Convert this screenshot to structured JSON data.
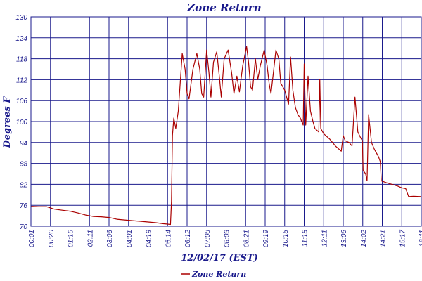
{
  "chart_data": {
    "type": "line",
    "title": "Zone Return",
    "ylabel": "Degrees F",
    "xlabel": "12/02/17 (EST)",
    "ylim": [
      70,
      130
    ],
    "yticks": [
      70,
      76,
      82,
      88,
      94,
      100,
      106,
      112,
      118,
      124,
      130
    ],
    "xticks": [
      "00:01",
      "00:20",
      "01:16",
      "02:11",
      "03:06",
      "04:01",
      "04:19",
      "05:14",
      "06:12",
      "07:08",
      "08:03",
      "08:21",
      "09:19",
      "10:15",
      "11:15",
      "12:11",
      "13:06",
      "14:02",
      "14:21",
      "15:17",
      "16:11"
    ],
    "grid": true,
    "legend": "bottom-center",
    "colors": {
      "series": "#aa0000",
      "grid": "#1a1a8c",
      "text": "#1a1a8c"
    },
    "series": [
      {
        "name": "Zone Return",
        "points": [
          [
            0,
            75.7
          ],
          [
            0.4,
            75.6
          ],
          [
            0.8,
            75.6
          ],
          [
            1.2,
            74.9
          ],
          [
            1.6,
            74.6
          ],
          [
            2.0,
            74.3
          ],
          [
            2.4,
            73.8
          ],
          [
            2.8,
            73.2
          ],
          [
            3.2,
            72.8
          ],
          [
            3.6,
            72.7
          ],
          [
            4.0,
            72.5
          ],
          [
            4.4,
            72.0
          ],
          [
            4.8,
            71.8
          ],
          [
            5.2,
            71.6
          ],
          [
            5.6,
            71.4
          ],
          [
            6.0,
            71.2
          ],
          [
            6.4,
            71.0
          ],
          [
            6.8,
            70.7
          ],
          [
            7.0,
            70.6
          ],
          [
            7.15,
            70.5
          ],
          [
            7.2,
            77.0
          ],
          [
            7.25,
            96.0
          ],
          [
            7.32,
            101.0
          ],
          [
            7.42,
            98.0
          ],
          [
            7.55,
            103.0
          ],
          [
            7.75,
            119.5
          ],
          [
            7.9,
            115.0
          ],
          [
            8.0,
            108.0
          ],
          [
            8.1,
            106.5
          ],
          [
            8.3,
            115.0
          ],
          [
            8.5,
            119.5
          ],
          [
            8.65,
            115.0
          ],
          [
            8.75,
            108.0
          ],
          [
            8.85,
            107.0
          ],
          [
            9.0,
            120.5
          ],
          [
            9.12,
            114.0
          ],
          [
            9.22,
            107.0
          ],
          [
            9.35,
            117.0
          ],
          [
            9.52,
            120.0
          ],
          [
            9.65,
            113.0
          ],
          [
            9.75,
            107.0
          ],
          [
            9.9,
            118.0
          ],
          [
            10.1,
            120.5
          ],
          [
            10.28,
            114.0
          ],
          [
            10.4,
            108.0
          ],
          [
            10.55,
            113.0
          ],
          [
            10.68,
            108.5
          ],
          [
            10.85,
            116.0
          ],
          [
            11.05,
            121.5
          ],
          [
            11.15,
            117.0
          ],
          [
            11.25,
            110.0
          ],
          [
            11.35,
            109.0
          ],
          [
            11.5,
            118.0
          ],
          [
            11.62,
            112.0
          ],
          [
            11.75,
            116.0
          ],
          [
            11.95,
            120.5
          ],
          [
            12.1,
            116.0
          ],
          [
            12.2,
            111.0
          ],
          [
            12.3,
            108.0
          ],
          [
            12.42,
            114.0
          ],
          [
            12.55,
            120.5
          ],
          [
            12.7,
            118.0
          ],
          [
            12.8,
            111.0
          ],
          [
            13.0,
            109.0
          ],
          [
            13.1,
            107.0
          ],
          [
            13.2,
            105.0
          ],
          [
            13.3,
            118.5
          ],
          [
            13.42,
            109.0
          ],
          [
            13.55,
            104.0
          ],
          [
            13.68,
            102.0
          ],
          [
            13.8,
            101.0
          ],
          [
            13.95,
            99.0
          ],
          [
            14.0,
            116.5
          ],
          [
            14.08,
            99.0
          ],
          [
            14.2,
            113.0
          ],
          [
            14.32,
            103.0
          ],
          [
            14.45,
            100.0
          ],
          [
            14.55,
            98.0
          ],
          [
            14.75,
            97.0
          ],
          [
            14.8,
            112.0
          ],
          [
            14.85,
            98.0
          ],
          [
            15.0,
            96.5
          ],
          [
            15.3,
            95.0
          ],
          [
            15.6,
            93.0
          ],
          [
            15.9,
            91.5
          ],
          [
            16.0,
            96.0
          ],
          [
            16.1,
            94.5
          ],
          [
            16.3,
            94.0
          ],
          [
            16.45,
            93.0
          ],
          [
            16.6,
            107.0
          ],
          [
            16.75,
            97.0
          ],
          [
            16.88,
            95.5
          ],
          [
            16.98,
            94.5
          ],
          [
            17.02,
            86.0
          ],
          [
            17.15,
            85.0
          ],
          [
            17.22,
            83.0
          ],
          [
            17.3,
            102.0
          ],
          [
            17.45,
            94.0
          ],
          [
            17.6,
            92.0
          ],
          [
            17.8,
            90.0
          ],
          [
            17.9,
            88.5
          ],
          [
            17.95,
            83.0
          ],
          [
            18.2,
            82.5
          ],
          [
            18.5,
            82.0
          ],
          [
            18.8,
            81.5
          ],
          [
            19.0,
            81.0
          ],
          [
            19.2,
            80.8
          ],
          [
            19.35,
            78.5
          ],
          [
            19.6,
            78.6
          ],
          [
            20.0,
            78.5
          ]
        ]
      }
    ]
  }
}
